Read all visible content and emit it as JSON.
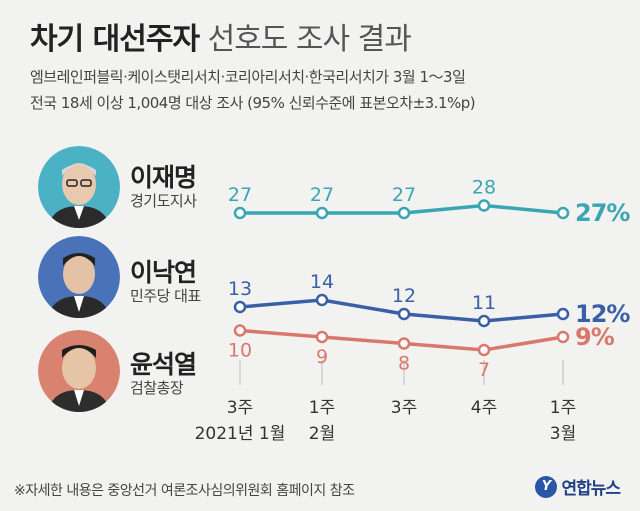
{
  "title": {
    "bold": "차기 대선주자",
    "light": "선호도 조사 결과"
  },
  "subtitle": [
    "엠브레인퍼블릭·케이스탯리서치·코리아리서치·한국리서치가 3월 1～3일",
    "전국 18세 이상 1,004명 대상 조사 (95% 신뢰수준에 표본오차±3.1%p)"
  ],
  "candidates": [
    {
      "name": "이재명",
      "role": "경기도지사",
      "face_color": "#4bb1c4",
      "icon": "candidate-photo"
    },
    {
      "name": "이낙연",
      "role": "민주당 대표",
      "face_color": "#4a72b8",
      "icon": "candidate-photo"
    },
    {
      "name": "윤석열",
      "role": "검찰총장",
      "face_color": "#d98270",
      "icon": "candidate-photo"
    }
  ],
  "chart_data": {
    "type": "line",
    "categories": [
      "2021년 1월 3주",
      "2월 1주",
      "2월 3주",
      "2월 4주",
      "3월 1주"
    ],
    "x_tick_lines": [
      [
        "3주",
        "2021년 1월"
      ],
      [
        "1주",
        "2월"
      ],
      [
        "3주",
        ""
      ],
      [
        "4주",
        ""
      ],
      [
        "1주",
        "3월"
      ]
    ],
    "series": [
      {
        "name": "이재명",
        "color": "#3aa5b3",
        "values": [
          27,
          27,
          27,
          28,
          27
        ],
        "last_label": "27%"
      },
      {
        "name": "이낙연",
        "color": "#3a5fa6",
        "values": [
          13,
          14,
          12,
          11,
          12
        ],
        "last_label": "12%"
      },
      {
        "name": "윤석열",
        "color": "#d9786a",
        "values": [
          10,
          9,
          8,
          7,
          9
        ],
        "last_label": "9%"
      }
    ],
    "unit": "%"
  },
  "footer": "※자세한 내용은 중앙선거 여론조사심의위원회 홈페이지 참조",
  "brand": {
    "icon_letter": "Y",
    "name": "연합뉴스"
  }
}
